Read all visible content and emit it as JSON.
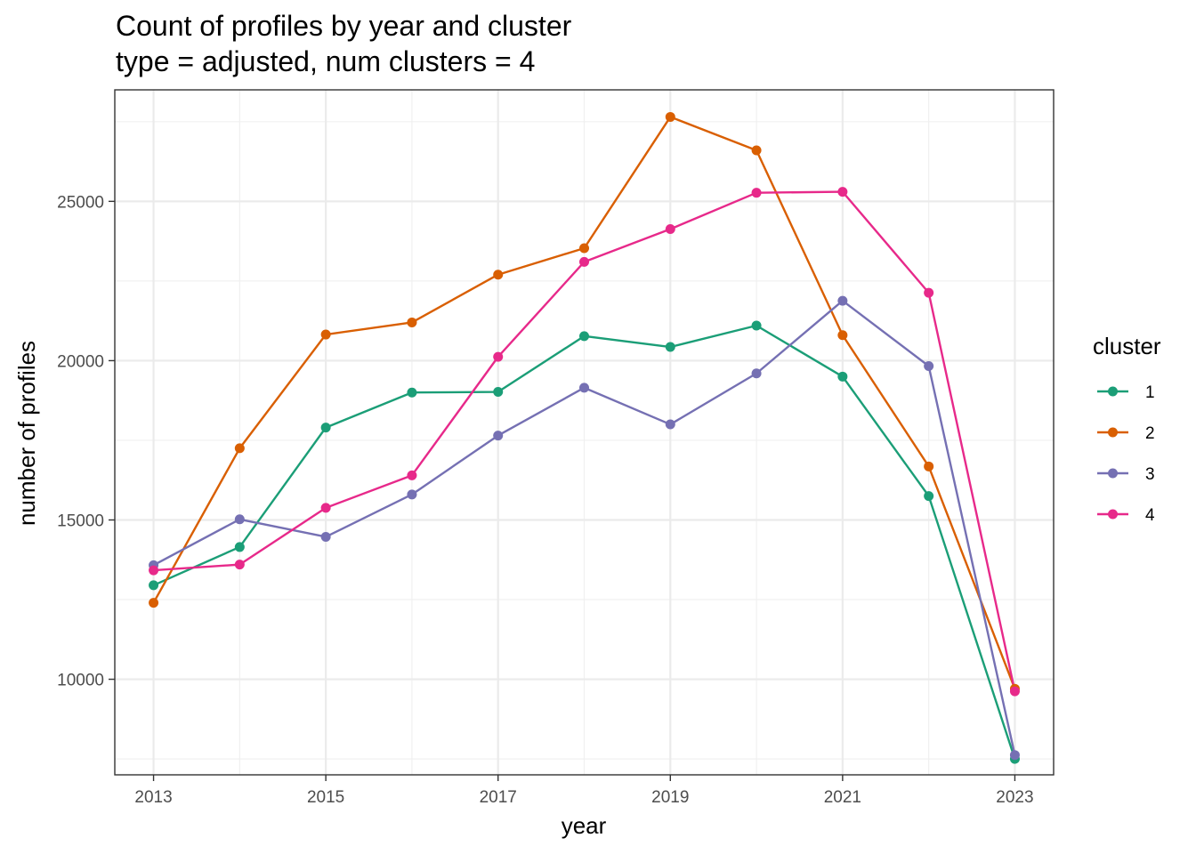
{
  "chart_data": {
    "type": "line",
    "title": "Count of profiles by year and cluster",
    "subtitle": "type = adjusted, num clusters = 4",
    "xlabel": "year",
    "ylabel": "number of profiles",
    "x": [
      2013,
      2014,
      2015,
      2016,
      2017,
      2018,
      2019,
      2020,
      2021,
      2022,
      2023
    ],
    "x_ticks": [
      "2013",
      "2015",
      "2017",
      "2019",
      "2021",
      "2023"
    ],
    "y_ticks": [
      "10000",
      "15000",
      "20000",
      "25000"
    ],
    "xlim": [
      2012.55,
      2023.45
    ],
    "ylim": [
      7000,
      28500
    ],
    "grid": true,
    "legend": {
      "title": "cluster",
      "position": "right"
    },
    "series": [
      {
        "name": "1",
        "color": "#1b9e77",
        "values": [
          12950,
          14150,
          17900,
          19000,
          19020,
          20770,
          20430,
          21100,
          19500,
          15750,
          7500
        ]
      },
      {
        "name": "2",
        "color": "#d95f02",
        "values": [
          12400,
          17250,
          20820,
          21200,
          22700,
          23530,
          27650,
          26600,
          20800,
          16680,
          9700
        ]
      },
      {
        "name": "3",
        "color": "#7570b3",
        "values": [
          13580,
          15020,
          14470,
          15800,
          17650,
          19150,
          18000,
          19600,
          21880,
          19830,
          7620
        ]
      },
      {
        "name": "4",
        "color": "#e7298a",
        "values": [
          13420,
          13600,
          15380,
          16400,
          20120,
          23100,
          24130,
          25270,
          25300,
          22130,
          9620
        ]
      }
    ]
  }
}
